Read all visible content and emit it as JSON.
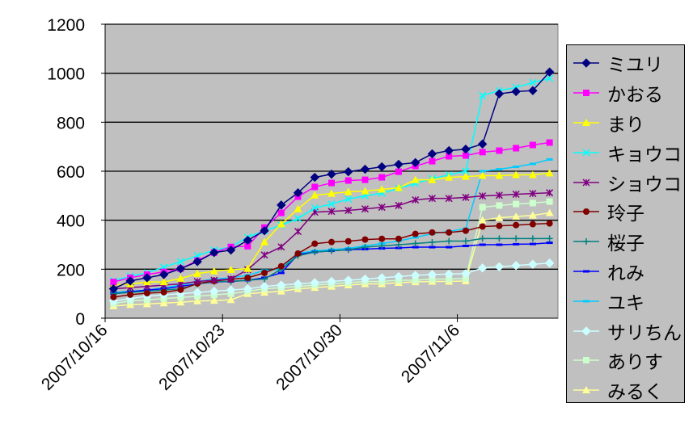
{
  "chart_data": {
    "type": "line",
    "title": "",
    "xlabel": "",
    "ylabel": "",
    "ylim": [
      0,
      1200
    ],
    "y_ticks": [
      "0",
      "200",
      "400",
      "600",
      "800",
      "1000",
      "1200"
    ],
    "y_tick_values": [
      0,
      200,
      400,
      600,
      800,
      1000,
      1200
    ],
    "x_ticks": [
      "2007/10/16",
      "2007/10/23",
      "2007/10/30",
      "2007/11/6"
    ],
    "x_tick_days": [
      0,
      7,
      14,
      21
    ],
    "x_range_days": [
      0,
      27
    ],
    "x_start": "2007/10/16",
    "grid": "horizontal",
    "legend_position": "right",
    "plot_background": "#c0c0c0",
    "series": [
      {
        "name": "ミユリ",
        "color": "#000080",
        "marker": "diamond",
        "values": [
          120,
          152,
          165,
          178,
          202,
          231,
          268,
          278,
          318,
          357,
          462,
          512,
          575,
          588,
          598,
          608,
          618,
          628,
          635,
          671,
          684,
          690,
          711,
          916,
          925,
          929,
          1005
        ]
      },
      {
        "name": "かおる",
        "color": "#ff00ff",
        "marker": "square",
        "values": [
          148,
          165,
          178,
          189,
          202,
          235,
          268,
          291,
          294,
          370,
          430,
          496,
          536,
          552,
          562,
          565,
          575,
          598,
          621,
          641,
          661,
          664,
          678,
          684,
          694,
          707,
          717
        ]
      },
      {
        "name": "まり",
        "color": "#ffff00",
        "marker": "triangle",
        "values": [
          136,
          139,
          148,
          148,
          162,
          182,
          192,
          198,
          202,
          311,
          384,
          446,
          502,
          509,
          516,
          519,
          526,
          532,
          565,
          565,
          575,
          578,
          582,
          582,
          585,
          585,
          592
        ]
      },
      {
        "name": "キョウコ",
        "color": "#00ffff",
        "marker": "x",
        "values": [
          152,
          172,
          185,
          208,
          231,
          255,
          278,
          291,
          331,
          357,
          380,
          407,
          450,
          466,
          486,
          500,
          510,
          530,
          550,
          570,
          585,
          600,
          909,
          929,
          942,
          962,
          979
        ]
      },
      {
        "name": "ショウコ",
        "color": "#800080",
        "marker": "star",
        "values": [
          120,
          125,
          130,
          135,
          140,
          150,
          155,
          160,
          198,
          258,
          291,
          354,
          433,
          436,
          440,
          446,
          453,
          460,
          483,
          489,
          489,
          493,
          499,
          502,
          506,
          509,
          512
        ]
      },
      {
        "name": "玲子",
        "color": "#800000",
        "marker": "circle",
        "values": [
          86,
          96,
          102,
          106,
          116,
          142,
          152,
          159,
          165,
          185,
          212,
          264,
          304,
          311,
          314,
          321,
          324,
          324,
          344,
          350,
          350,
          357,
          374,
          377,
          380,
          384,
          387
        ]
      },
      {
        "name": "桜子",
        "color": "#008080",
        "marker": "plus",
        "values": [
          100,
          105,
          110,
          115,
          120,
          140,
          150,
          150,
          155,
          160,
          200,
          255,
          270,
          275,
          280,
          290,
          295,
          300,
          305,
          310,
          315,
          315,
          325,
          325,
          325,
          325,
          325
        ]
      },
      {
        "name": "れみ",
        "color": "#0000ff",
        "marker": "dash",
        "values": [
          100,
          108,
          115,
          120,
          130,
          140,
          148,
          150,
          155,
          165,
          185,
          260,
          270,
          275,
          280,
          282,
          285,
          287,
          290,
          290,
          290,
          295,
          300,
          300,
          302,
          303,
          308
        ]
      },
      {
        "name": "ユキ",
        "color": "#00ccff",
        "marker": "dash",
        "values": [
          105,
          110,
          115,
          125,
          135,
          150,
          160,
          165,
          175,
          195,
          200,
          265,
          275,
          280,
          285,
          295,
          305,
          315,
          330,
          345,
          355,
          365,
          600,
          608,
          618,
          630,
          648
        ]
      },
      {
        "name": "サリちん",
        "color": "#ccffff",
        "marker": "diamond",
        "values": [
          70,
          80,
          90,
          95,
          100,
          105,
          110,
          115,
          120,
          130,
          135,
          140,
          145,
          150,
          155,
          160,
          165,
          170,
          175,
          178,
          180,
          182,
          205,
          210,
          215,
          220,
          225
        ]
      },
      {
        "name": "ありす",
        "color": "#ccffcc",
        "marker": "square",
        "values": [
          60,
          70,
          75,
          80,
          85,
          90,
          95,
          100,
          110,
          120,
          125,
          130,
          135,
          140,
          145,
          150,
          150,
          155,
          155,
          160,
          160,
          162,
          453,
          460,
          466,
          470,
          476
        ]
      },
      {
        "name": "みるく",
        "color": "#ffff99",
        "marker": "triangle",
        "values": [
          50,
          55,
          58,
          62,
          65,
          70,
          72,
          75,
          100,
          105,
          110,
          120,
          125,
          130,
          135,
          140,
          140,
          145,
          148,
          150,
          150,
          152,
          400,
          410,
          415,
          420,
          430
        ]
      }
    ]
  }
}
